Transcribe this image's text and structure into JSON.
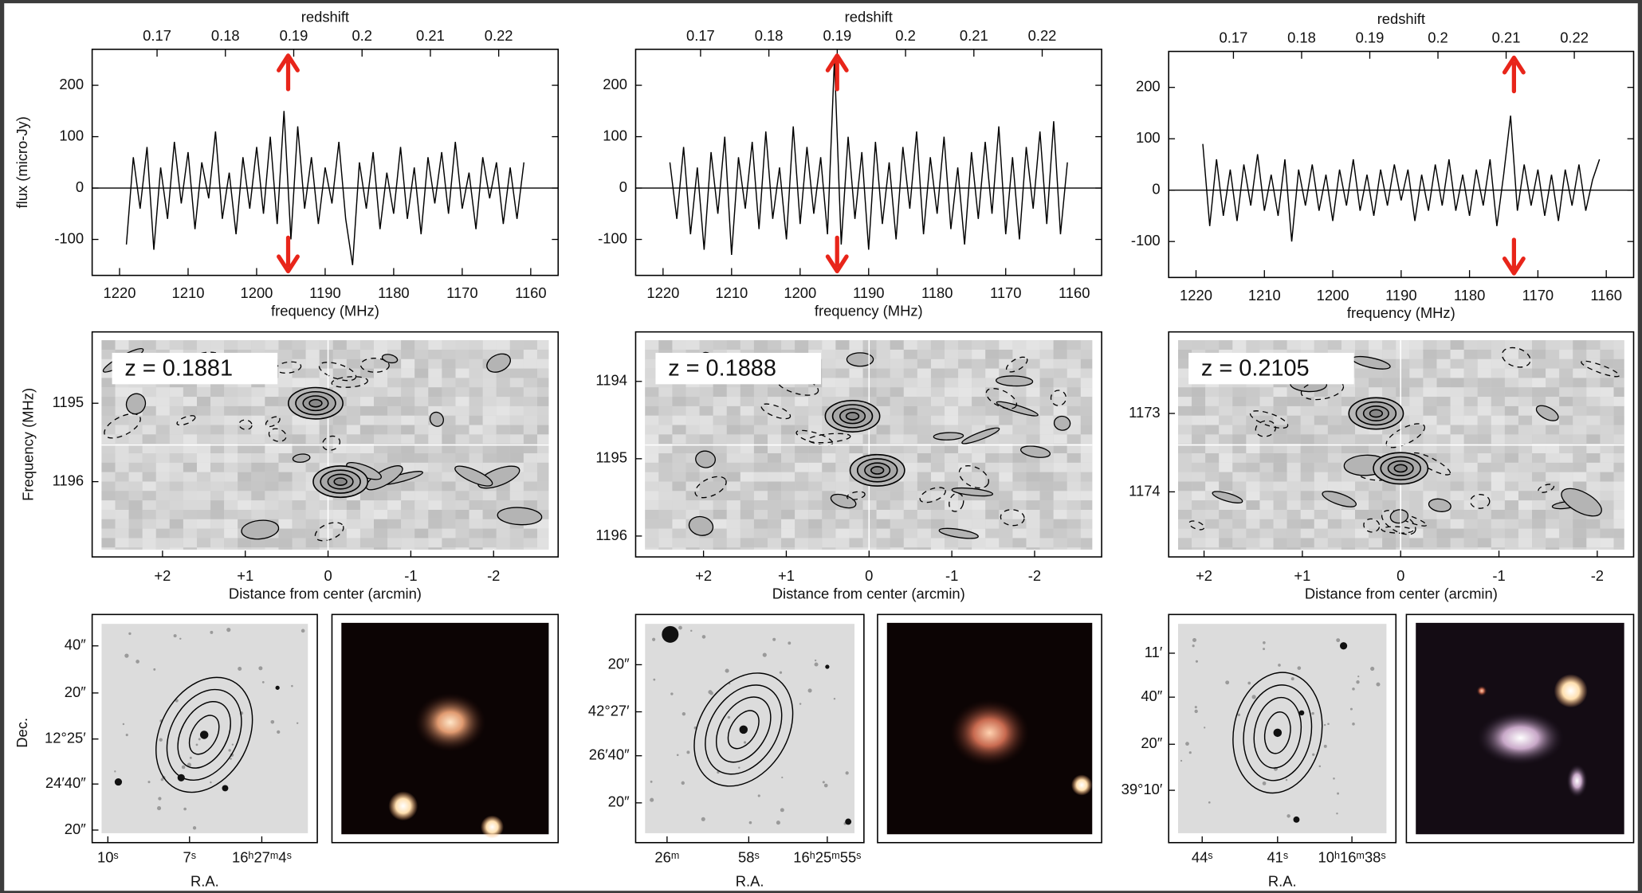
{
  "chart_data": [
    {
      "type": "line",
      "x2label": "redshift",
      "x2lim": [
        0.1605,
        0.2287
      ],
      "x2ticks": [
        0.17,
        0.18,
        0.19,
        0.2,
        0.21,
        0.22
      ],
      "xlabel": "frequency (MHz)",
      "ylabel": "flux (micro-Jy)",
      "xlim": [
        1224,
        1156
      ],
      "xticks": [
        1220,
        1210,
        1200,
        1190,
        1180,
        1170,
        1160
      ],
      "ylim": [
        -170,
        270
      ],
      "yticks": [
        -100,
        0,
        100,
        200
      ],
      "arrows": [
        1195.4
      ],
      "color": "#000000",
      "x": [
        1219,
        1218,
        1217,
        1216,
        1215,
        1214,
        1213,
        1212,
        1211,
        1210,
        1209,
        1208,
        1207,
        1206,
        1205,
        1204,
        1203,
        1202,
        1201,
        1200,
        1199,
        1198,
        1197,
        1196,
        1195,
        1194,
        1193,
        1192,
        1191,
        1190,
        1189,
        1188,
        1187,
        1186,
        1185,
        1184,
        1183,
        1182,
        1181,
        1180,
        1179,
        1178,
        1177,
        1176,
        1175,
        1174,
        1173,
        1172,
        1171,
        1170,
        1169,
        1168,
        1167,
        1166,
        1165,
        1164,
        1163,
        1162,
        1161
      ],
      "values": [
        -110,
        60,
        -40,
        80,
        -120,
        40,
        -60,
        90,
        -30,
        70,
        -80,
        50,
        -20,
        110,
        -60,
        30,
        -90,
        60,
        -40,
        80,
        -50,
        100,
        -70,
        150,
        -100,
        120,
        -40,
        60,
        -70,
        40,
        -30,
        90,
        -60,
        -150,
        50,
        -40,
        70,
        -80,
        30,
        -50,
        80,
        -60,
        40,
        -90,
        60,
        -30,
        70,
        -50,
        90,
        -40,
        30,
        -80,
        60,
        -20,
        50,
        -70,
        40,
        -60,
        50
      ]
    },
    {
      "type": "line",
      "x2label": "redshift",
      "x2lim": [
        0.1605,
        0.2287
      ],
      "x2ticks": [
        0.17,
        0.18,
        0.19,
        0.2,
        0.21,
        0.22
      ],
      "xlabel": "frequency (MHz)",
      "xlim": [
        1224,
        1156
      ],
      "xticks": [
        1220,
        1210,
        1200,
        1190,
        1180,
        1170,
        1160
      ],
      "ylim": [
        -170,
        270
      ],
      "yticks": [
        -100,
        0,
        100,
        200
      ],
      "arrows": [
        1194.6
      ],
      "color": "#000000",
      "x": [
        1219,
        1218,
        1217,
        1216,
        1215,
        1214,
        1213,
        1212,
        1211,
        1210,
        1209,
        1208,
        1207,
        1206,
        1205,
        1204,
        1203,
        1202,
        1201,
        1200,
        1199,
        1198,
        1197,
        1196,
        1195,
        1194,
        1193,
        1192,
        1191,
        1190,
        1189,
        1188,
        1187,
        1186,
        1185,
        1184,
        1183,
        1182,
        1181,
        1180,
        1179,
        1178,
        1177,
        1176,
        1175,
        1174,
        1173,
        1172,
        1171,
        1170,
        1169,
        1168,
        1167,
        1166,
        1165,
        1164,
        1163,
        1162,
        1161
      ],
      "values": [
        50,
        -60,
        80,
        -90,
        40,
        -120,
        70,
        -50,
        100,
        -130,
        60,
        -40,
        90,
        -80,
        110,
        -60,
        40,
        -100,
        120,
        -70,
        80,
        -50,
        60,
        -90,
        250,
        -110,
        100,
        -60,
        70,
        -120,
        90,
        -70,
        50,
        -100,
        80,
        -40,
        110,
        -90,
        60,
        -50,
        100,
        -80,
        40,
        -110,
        70,
        -60,
        90,
        -50,
        120,
        -90,
        60,
        -100,
        80,
        -40,
        110,
        -70,
        130,
        -90,
        50
      ]
    },
    {
      "type": "line",
      "x2label": "redshift",
      "x2lim": [
        0.1605,
        0.2287
      ],
      "x2ticks": [
        0.17,
        0.18,
        0.19,
        0.2,
        0.21,
        0.22
      ],
      "xlabel": "frequency (MHz)",
      "xlim": [
        1224,
        1156
      ],
      "xticks": [
        1220,
        1210,
        1200,
        1190,
        1180,
        1170,
        1160
      ],
      "ylim": [
        -170,
        270
      ],
      "yticks": [
        -100,
        0,
        100,
        200
      ],
      "arrows": [
        1173.5
      ],
      "color": "#000000",
      "x": [
        1219,
        1218,
        1217,
        1216,
        1215,
        1214,
        1213,
        1212,
        1211,
        1210,
        1209,
        1208,
        1207,
        1206,
        1205,
        1204,
        1203,
        1202,
        1201,
        1200,
        1199,
        1198,
        1197,
        1196,
        1195,
        1194,
        1193,
        1192,
        1191,
        1190,
        1189,
        1188,
        1187,
        1186,
        1185,
        1184,
        1183,
        1182,
        1181,
        1180,
        1179,
        1178,
        1177,
        1176,
        1175,
        1174,
        1173,
        1172,
        1171,
        1170,
        1169,
        1168,
        1167,
        1166,
        1165,
        1164,
        1163,
        1162,
        1161
      ],
      "values": [
        90,
        -70,
        60,
        -50,
        40,
        -60,
        50,
        -30,
        70,
        -40,
        30,
        -50,
        60,
        -100,
        40,
        -30,
        50,
        -40,
        30,
        -60,
        40,
        -30,
        60,
        -40,
        30,
        -50,
        40,
        -30,
        50,
        -20,
        40,
        -60,
        30,
        -40,
        50,
        -30,
        60,
        -40,
        30,
        -50,
        40,
        -30,
        60,
        -70,
        30,
        145,
        -40,
        50,
        -30,
        40,
        -50,
        30,
        -60,
        40,
        -30,
        50,
        -40,
        20,
        60
      ]
    },
    {
      "type": "contour",
      "label": "z = 0.1881",
      "xlabel": "Distance from center (arcmin)",
      "ylabel": "Frequency (MHz)",
      "xlim": [
        2.85,
        -2.78
      ],
      "xticks": [
        {
          "value": 2,
          "label": "+2"
        },
        {
          "value": 1,
          "label": "+1"
        },
        0,
        -1,
        -2
      ],
      "ylim": [
        1194.09,
        1196.96
      ],
      "yticks": [
        1195,
        1196
      ],
      "peaks": [
        {
          "x": 0.15,
          "y": 1195.0
        },
        {
          "x": -0.15,
          "y": 1196.0
        }
      ]
    },
    {
      "type": "contour",
      "label": "z = 0.1888",
      "xlabel": "Distance from center (arcmin)",
      "xlim": [
        2.82,
        -2.81
      ],
      "xticks": [
        {
          "value": 2,
          "label": "+2"
        },
        {
          "value": 1,
          "label": "+1"
        },
        0,
        -1,
        -2
      ],
      "ylim": [
        1193.36,
        1196.27
      ],
      "yticks": [
        1194,
        1195,
        1196
      ],
      "peaks": [
        {
          "x": 0.2,
          "y": 1194.45
        },
        {
          "x": -0.1,
          "y": 1195.15
        }
      ]
    },
    {
      "type": "contour",
      "label": "z = 0.2105",
      "xlabel": "Distance from center (arcmin)",
      "xlim": [
        2.36,
        -2.37
      ],
      "xticks": [
        {
          "value": 2,
          "label": "+2"
        },
        {
          "value": 1,
          "label": "+1"
        },
        0,
        -1,
        -2
      ],
      "ylim": [
        1171.96,
        1174.83
      ],
      "yticks": [
        1173,
        1174
      ],
      "peaks": [
        {
          "x": 0.25,
          "y": 1173.0
        },
        {
          "x": 0.0,
          "y": 1173.7
        }
      ]
    },
    {
      "type": "image",
      "xlabel": "R.A.",
      "ylabel": "Dec.",
      "xticks": [
        "10ˢ",
        "7ˢ",
        "16ʰ27ᵐ4ˢ"
      ],
      "yticks": [
        "40″",
        "20″",
        "12°25′",
        "24′40″",
        "20″"
      ]
    },
    {
      "type": "image",
      "xlabel": "R.A.",
      "xticks": [
        "26ᵐ",
        "58ˢ",
        "16ʰ25ᵐ55ˢ"
      ],
      "yticks": [
        "20″",
        "42°27′",
        "26′40″",
        "20″"
      ]
    },
    {
      "type": "image",
      "xlabel": "R.A.",
      "xticks": [
        "44ˢ",
        "41ˢ",
        "10ʰ16ᵐ38ˢ"
      ],
      "yticks": [
        "11′",
        "40″",
        "20″",
        "39°10′"
      ]
    }
  ]
}
